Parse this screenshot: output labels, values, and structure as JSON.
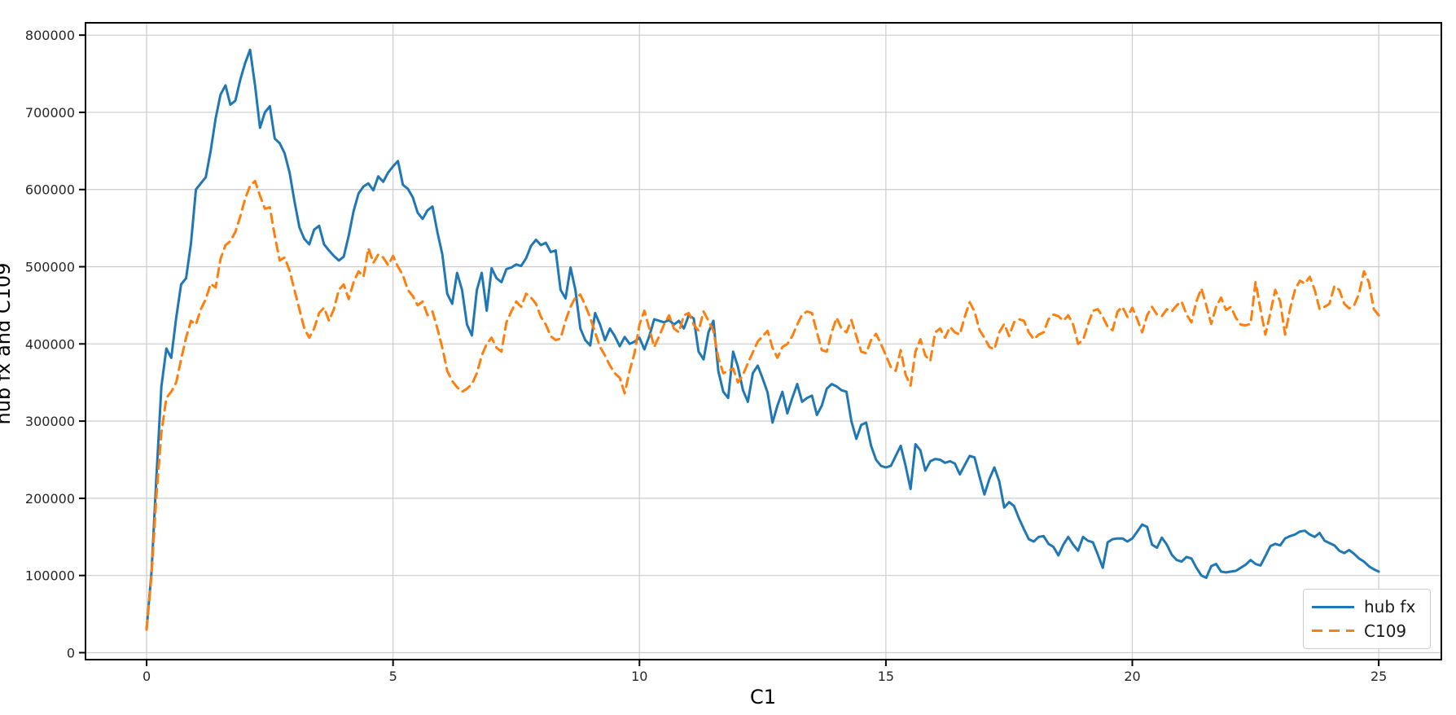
{
  "figure": {
    "xlabel": "C1",
    "ylabel": "hub fx and C109",
    "background_color": "#ffffff",
    "grid_color": "#cccccc",
    "spine_color": "#000000",
    "tick_color": "#262626"
  },
  "legend": {
    "position": "lower right",
    "entries": [
      {
        "label": "hub fx",
        "color": "#1f77b4",
        "style": "solid"
      },
      {
        "label": "C109",
        "color": "#ff7f0e",
        "style": "dashed"
      }
    ]
  },
  "chart_data": {
    "type": "line",
    "title": "",
    "xlabel": "C1",
    "ylabel": "hub fx and C109",
    "xlim": [
      -1.24,
      26.27
    ],
    "ylim": [
      -9000,
      816000
    ],
    "xticks": [
      0,
      5,
      10,
      15,
      20,
      25
    ],
    "yticks": [
      0,
      100000,
      200000,
      300000,
      400000,
      500000,
      600000,
      700000,
      800000
    ],
    "grid": true,
    "legend_position": "lower right",
    "x_start": 0,
    "x_step": 0.1,
    "series": [
      {
        "name": "hub fx",
        "color": "#1f77b4",
        "line_style": "solid",
        "line_width": 3,
        "values": [
          30000,
          105000,
          230000,
          345000,
          394000,
          382000,
          434000,
          477000,
          485000,
          530000,
          600000,
          608000,
          616000,
          650000,
          692000,
          723000,
          735000,
          710000,
          715000,
          742000,
          764000,
          781000,
          735000,
          680000,
          700000,
          708000,
          666000,
          660000,
          647000,
          622000,
          585000,
          551000,
          536000,
          529000,
          548000,
          553000,
          529000,
          521000,
          514000,
          508000,
          513000,
          540000,
          572000,
          595000,
          604000,
          608000,
          599000,
          617000,
          610000,
          622000,
          630000,
          637000,
          606000,
          601000,
          590000,
          570000,
          562000,
          573000,
          578000,
          545000,
          516000,
          465000,
          452000,
          492000,
          470000,
          425000,
          411000,
          470000,
          492000,
          443000,
          498000,
          485000,
          480000,
          497000,
          499000,
          503000,
          501000,
          511000,
          527000,
          535000,
          528000,
          531000,
          519000,
          521000,
          470000,
          459000,
          499000,
          470000,
          420000,
          405000,
          398000,
          440000,
          425000,
          405000,
          420000,
          410000,
          397000,
          409000,
          400000,
          403000,
          408000,
          393000,
          410000,
          432000,
          430000,
          428000,
          431000,
          425000,
          430000,
          420000,
          437000,
          433000,
          390000,
          380000,
          415000,
          430000,
          365000,
          338000,
          330000,
          390000,
          370000,
          340000,
          325000,
          362000,
          372000,
          355000,
          337000,
          298000,
          320000,
          338000,
          310000,
          330000,
          348000,
          325000,
          330000,
          333000,
          308000,
          320000,
          342000,
          348000,
          345000,
          340000,
          338000,
          300000,
          277000,
          295000,
          298000,
          268000,
          250000,
          242000,
          240000,
          242000,
          255000,
          268000,
          242000,
          212000,
          270000,
          262000,
          236000,
          248000,
          251000,
          250000,
          246000,
          248000,
          245000,
          231000,
          243000,
          255000,
          253000,
          228000,
          205000,
          225000,
          240000,
          222000,
          188000,
          195000,
          190000,
          174000,
          160000,
          147000,
          144000,
          150000,
          151000,
          141000,
          137000,
          126000,
          140000,
          150000,
          140000,
          132000,
          150000,
          145000,
          143000,
          127000,
          110000,
          143000,
          147000,
          148000,
          148000,
          144000,
          148000,
          157000,
          166000,
          163000,
          140000,
          136000,
          149000,
          140000,
          127000,
          120000,
          118000,
          124000,
          122000,
          110000,
          100000,
          97000,
          112000,
          115000,
          105000,
          104000,
          105000,
          106000,
          110000,
          114000,
          120000,
          115000,
          113000,
          125000,
          138000,
          141000,
          139000,
          148000,
          151000,
          153000,
          157000,
          158000,
          153000,
          150000,
          155000,
          145000,
          142000,
          139000,
          132000,
          129000,
          133000,
          128000,
          122000,
          118000,
          112000,
          108000,
          105000
        ]
      },
      {
        "name": "C109",
        "color": "#ff7f0e",
        "line_style": "dashed",
        "line_width": 3,
        "values": [
          30000,
          100000,
          205000,
          285000,
          330000,
          338000,
          350000,
          380000,
          408000,
          430000,
          425000,
          445000,
          458000,
          478000,
          473000,
          510000,
          528000,
          533000,
          545000,
          565000,
          588000,
          605000,
          611000,
          592000,
          575000,
          577000,
          540000,
          508000,
          512000,
          495000,
          470000,
          445000,
          420000,
          408000,
          420000,
          440000,
          447000,
          430000,
          445000,
          470000,
          477000,
          458000,
          480000,
          494000,
          487000,
          524000,
          505000,
          516000,
          512000,
          502000,
          514000,
          500000,
          489000,
          470000,
          462000,
          450000,
          455000,
          437000,
          442000,
          420000,
          395000,
          365000,
          352000,
          344000,
          338000,
          342000,
          348000,
          362000,
          385000,
          400000,
          408000,
          395000,
          390000,
          428000,
          442000,
          455000,
          448000,
          465000,
          460000,
          452000,
          435000,
          425000,
          410000,
          405000,
          407000,
          430000,
          448000,
          460000,
          464000,
          450000,
          434000,
          415000,
          396000,
          385000,
          372000,
          362000,
          356000,
          336000,
          365000,
          388000,
          425000,
          443000,
          420000,
          396000,
          410000,
          425000,
          437000,
          420000,
          415000,
          437000,
          440000,
          425000,
          417000,
          442000,
          430000,
          417000,
          382000,
          362000,
          365000,
          368000,
          350000,
          360000,
          375000,
          389000,
          403000,
          410000,
          417000,
          395000,
          382000,
          396000,
          400000,
          410000,
          425000,
          438000,
          442000,
          440000,
          415000,
          392000,
          390000,
          415000,
          434000,
          420000,
          415000,
          431000,
          410000,
          390000,
          388000,
          405000,
          413000,
          400000,
          385000,
          370000,
          365000,
          392000,
          360000,
          346000,
          390000,
          406000,
          385000,
          378000,
          415000,
          420000,
          408000,
          422000,
          415000,
          412000,
          435000,
          454000,
          442000,
          418000,
          408000,
          396000,
          393000,
          415000,
          426000,
          410000,
          428000,
          432000,
          430000,
          415000,
          406000,
          412000,
          415000,
          432000,
          438000,
          436000,
          430000,
          437000,
          425000,
          400000,
          405000,
          425000,
          443000,
          445000,
          435000,
          422000,
          418000,
          442000,
          448000,
          435000,
          447000,
          432000,
          415000,
          437000,
          448000,
          438000,
          436000,
          445000,
          442000,
          450000,
          455000,
          438000,
          428000,
          455000,
          472000,
          450000,
          426000,
          448000,
          460000,
          444000,
          448000,
          434000,
          425000,
          424000,
          426000,
          480000,
          445000,
          412000,
          440000,
          470000,
          455000,
          412000,
          445000,
          470000,
          482000,
          478000,
          487000,
          470000,
          445000,
          448000,
          452000,
          475000,
          470000,
          452000,
          446000,
          450000,
          465000,
          494000,
          480000,
          445000,
          437000
        ]
      }
    ]
  }
}
